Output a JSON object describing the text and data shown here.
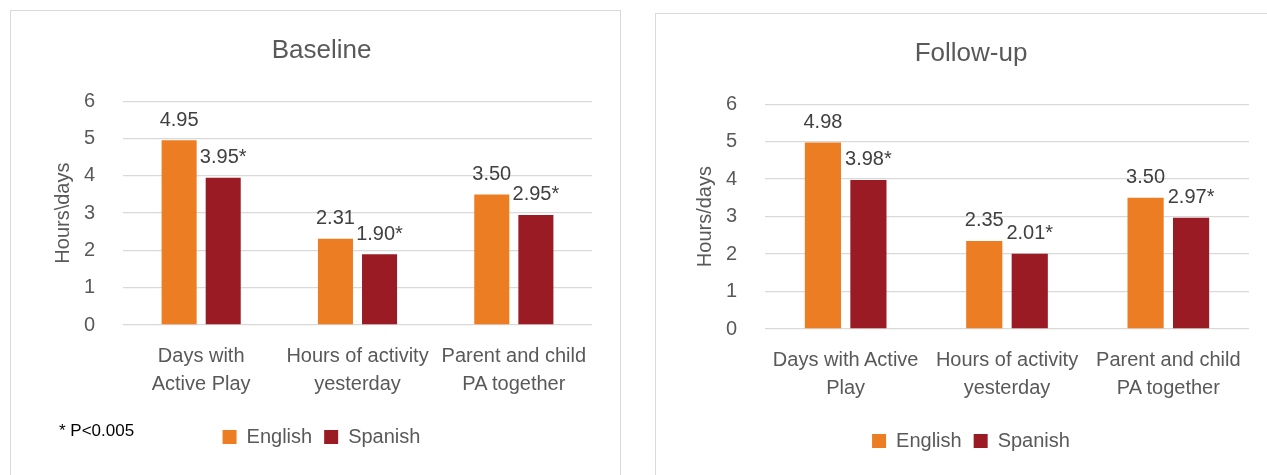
{
  "chart_data": [
    {
      "type": "bar",
      "title": "Baseline",
      "ylabel": "Hours\\days",
      "categories": [
        "Days with Active Play",
        "Hours of activity yesterday",
        "Parent and child PA together"
      ],
      "series": [
        {
          "name": "English",
          "color": "#ed7d22",
          "values": [
            4.95,
            2.31,
            3.5
          ],
          "value_labels": [
            "4.95",
            "2.31",
            "3.50"
          ]
        },
        {
          "name": "Spanish",
          "color": "#9b1b25",
          "values": [
            3.95,
            1.9,
            2.95
          ],
          "value_labels": [
            "3.95*",
            "1.90*",
            "2.95*"
          ]
        }
      ],
      "ylim": [
        0,
        6
      ],
      "yticks": [
        0,
        1,
        2,
        3,
        4,
        5,
        6
      ],
      "grid": "y",
      "legend": "bottom",
      "annotations": [
        "* P<0.005"
      ]
    },
    {
      "type": "bar",
      "title": "Follow-up",
      "ylabel": "Hours/days",
      "categories": [
        "Days with Active Play",
        "Hours of activity yesterday",
        "Parent and child PA together"
      ],
      "series": [
        {
          "name": "English",
          "color": "#ed7d22",
          "values": [
            4.98,
            2.35,
            3.5
          ],
          "value_labels": [
            "4.98",
            "2.35",
            "3.50"
          ]
        },
        {
          "name": "Spanish",
          "color": "#9b1b25",
          "values": [
            3.98,
            2.01,
            2.97
          ],
          "value_labels": [
            "3.98*",
            "2.01*",
            "2.97*"
          ]
        }
      ],
      "ylim": [
        0,
        6
      ],
      "yticks": [
        0,
        1,
        2,
        3,
        4,
        5,
        6
      ],
      "grid": "y",
      "legend": "bottom"
    }
  ]
}
